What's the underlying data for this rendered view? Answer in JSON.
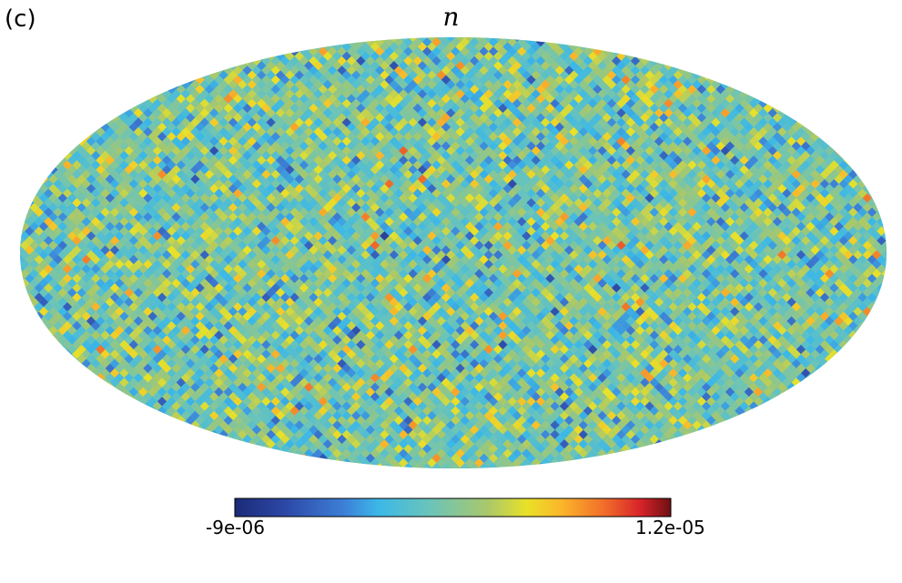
{
  "panel_label": "(c)",
  "chart_data": {
    "type": "heatmap",
    "projection": "mollweide",
    "title": "n",
    "colormap": "parula",
    "colorbar": {
      "min_label": "-9e-06",
      "max_label": "1.2e-05",
      "min": -9e-06,
      "max": 1.2e-05,
      "orientation": "horizontal",
      "placement": "bottom"
    },
    "colors": [
      "#352a87",
      "#0f5cdd",
      "#1481d6",
      "#06a4ca",
      "#2eb7a4",
      "#87bf77",
      "#d1bb59",
      "#fec832",
      "#f9fb0e",
      "#f46d1b",
      "#d7191c",
      "#7f0000"
    ]
  }
}
